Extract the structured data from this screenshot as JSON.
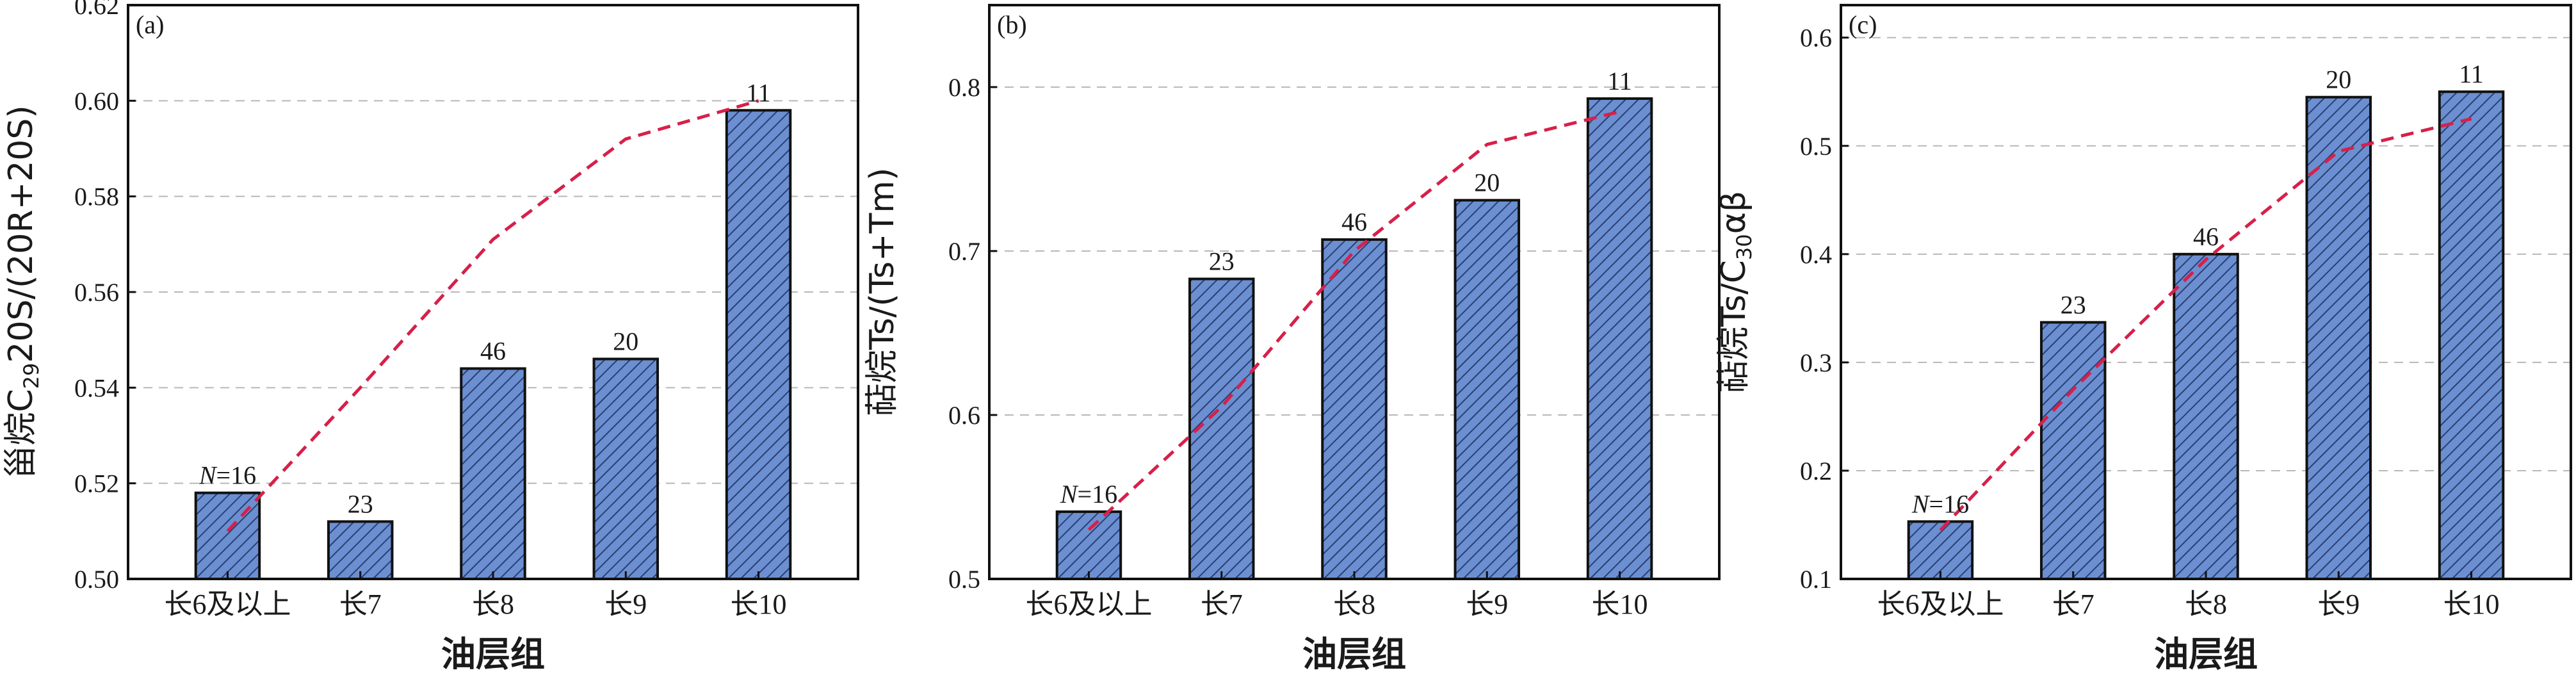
{
  "colors": {
    "bar_fill": "#6b8fd0",
    "bar_hatch": "#2a3f73",
    "bar_edge": "#111111",
    "trend_line": "#d6204a",
    "grid": "#b8b8b8"
  },
  "chart_data": [
    {
      "type": "bar",
      "panel_label": "(a)",
      "categories": [
        "长6及以上",
        "长7",
        "长8",
        "长9",
        "长10"
      ],
      "values": [
        0.518,
        0.512,
        0.544,
        0.546,
        0.598
      ],
      "trend_line": [
        0.51,
        0.54,
        0.571,
        0.592,
        0.6
      ],
      "counts": [
        "16",
        "23",
        "46",
        "20",
        "11"
      ],
      "count_prefix": "N",
      "count_equals": "=",
      "xlabel": "油层组",
      "ylabel_parts": [
        "甾烷C",
        "29",
        "20S/(20R+20S)"
      ],
      "ylim": [
        0.5,
        0.62
      ],
      "yticks": [
        0.5,
        0.52,
        0.54,
        0.56,
        0.58,
        0.6,
        0.62
      ],
      "ytick_labels": [
        "0.50",
        "0.52",
        "0.54",
        "0.56",
        "0.58",
        "0.60",
        "0.62"
      ],
      "grid": true
    },
    {
      "type": "bar",
      "panel_label": "(b)",
      "categories": [
        "长6及以上",
        "长7",
        "长8",
        "长9",
        "长10"
      ],
      "values": [
        0.541,
        0.683,
        0.707,
        0.731,
        0.793
      ],
      "trend_line": [
        0.53,
        0.605,
        0.7,
        0.765,
        0.785
      ],
      "counts": [
        "16",
        "23",
        "46",
        "20",
        "11"
      ],
      "count_prefix": "N",
      "count_equals": "=",
      "xlabel": "油层组",
      "ylabel_parts": [
        "萜烷Ts/(Ts+Tm)"
      ],
      "ylim": [
        0.5,
        0.85
      ],
      "yticks": [
        0.5,
        0.6,
        0.7,
        0.8
      ],
      "ytick_labels": [
        "0.5",
        "0.6",
        "0.7",
        "0.8"
      ],
      "grid": true
    },
    {
      "type": "bar",
      "panel_label": "(c)",
      "categories": [
        "长6及以上",
        "长7",
        "长8",
        "长9",
        "长10"
      ],
      "values": [
        0.153,
        0.337,
        0.4,
        0.545,
        0.55
      ],
      "trend_line": [
        0.145,
        0.275,
        0.395,
        0.495,
        0.525
      ],
      "counts": [
        "16",
        "23",
        "46",
        "20",
        "11"
      ],
      "count_prefix": "N",
      "count_equals": "=",
      "xlabel": "油层组",
      "ylabel_parts": [
        "萜烷Ts/C",
        "30",
        "αβ"
      ],
      "ylim": [
        0.1,
        0.63
      ],
      "yticks": [
        0.1,
        0.2,
        0.3,
        0.4,
        0.5,
        0.6
      ],
      "ytick_labels": [
        "0.1",
        "0.2",
        "0.3",
        "0.4",
        "0.5",
        "0.6"
      ],
      "grid": true
    }
  ]
}
